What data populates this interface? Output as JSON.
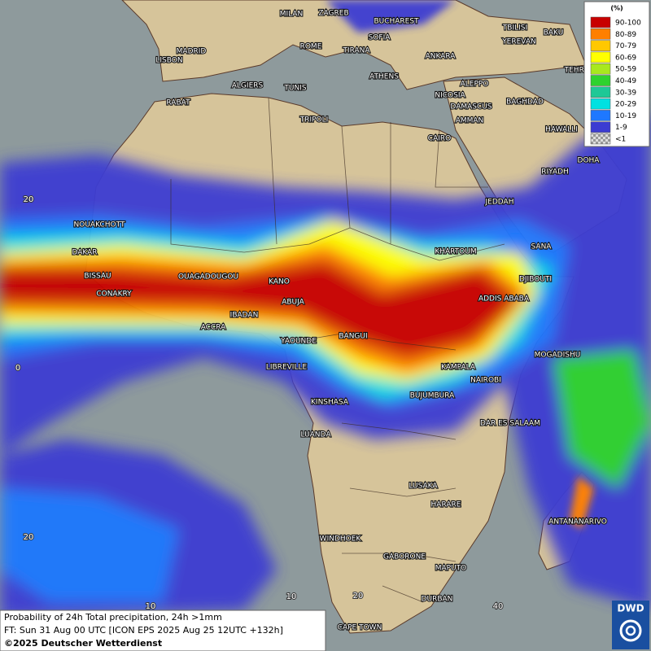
{
  "map": {
    "cities": [
      "MILAN",
      "ZAGREB",
      "BUCHAREST",
      "TBILISI",
      "BAKU",
      "YEREVAN",
      "MADRID",
      "ROME",
      "SOFIA",
      "LISBON",
      "TIRANA",
      "ANKARA",
      "TEHRAN",
      "ATHENS",
      "ALGIERS",
      "TUNIS",
      "ALEPPO",
      "NICOSIA",
      "RABAT",
      "BAGHDAD",
      "DAMASCUS",
      "AMMAN",
      "TRIPOLI",
      "HAWALLI",
      "DOHA",
      "CAIRO",
      "RIYADH",
      "JEDDAH",
      "NOUAKCHOTT",
      "SANA",
      "KHARTOUM",
      "DAKAR",
      "DJIBOUTI",
      "BISSAU",
      "OUAGADOUGOU",
      "KANO",
      "CONAKRY",
      "ADDIS ABABA",
      "ABUJA",
      "IBADAN",
      "ACCRA",
      "YAOUNDE",
      "BANGUI",
      "MOGADISHU",
      "LIBREVILLE",
      "KAMPALA",
      "NAIROBI",
      "KINSHASA",
      "BUJUMBURA",
      "DAR ES SALAAM",
      "LUANDA",
      "LUSAKA",
      "HARARE",
      "ANTANANARIVO",
      "WINDHOEK",
      "GABORONE",
      "MAPUTO",
      "DURBAN",
      "CAPE TOWN"
    ],
    "grid_labels": [
      "20",
      "0",
      "20",
      "10",
      "10",
      "20",
      "40"
    ]
  },
  "legend": {
    "title": "(%)",
    "entries": [
      {
        "label": "90-100",
        "color": "#c80000"
      },
      {
        "label": "80-89",
        "color": "#ff7f00"
      },
      {
        "label": "70-79",
        "color": "#ffc800"
      },
      {
        "label": "60-69",
        "color": "#ffff00"
      },
      {
        "label": "50-59",
        "color": "#a8e81e"
      },
      {
        "label": "40-49",
        "color": "#2ed22e"
      },
      {
        "label": "30-39",
        "color": "#1ec896"
      },
      {
        "label": "20-29",
        "color": "#00e1e1"
      },
      {
        "label": "10-19",
        "color": "#1e78ff"
      },
      {
        "label": "1-9",
        "color": "#3c3cd2"
      },
      {
        "label": "<1",
        "color": "#b4b4b4"
      }
    ]
  },
  "footer": {
    "lines": [
      "Probability of 24h Total precipitation, 24h >1mm",
      "FT: Sun 31 Aug 00 UTC [ICON EPS 2025 Aug 25 12UTC +132h]",
      "©2025 Deutscher Wetterdienst"
    ],
    "logo": "DWD"
  }
}
